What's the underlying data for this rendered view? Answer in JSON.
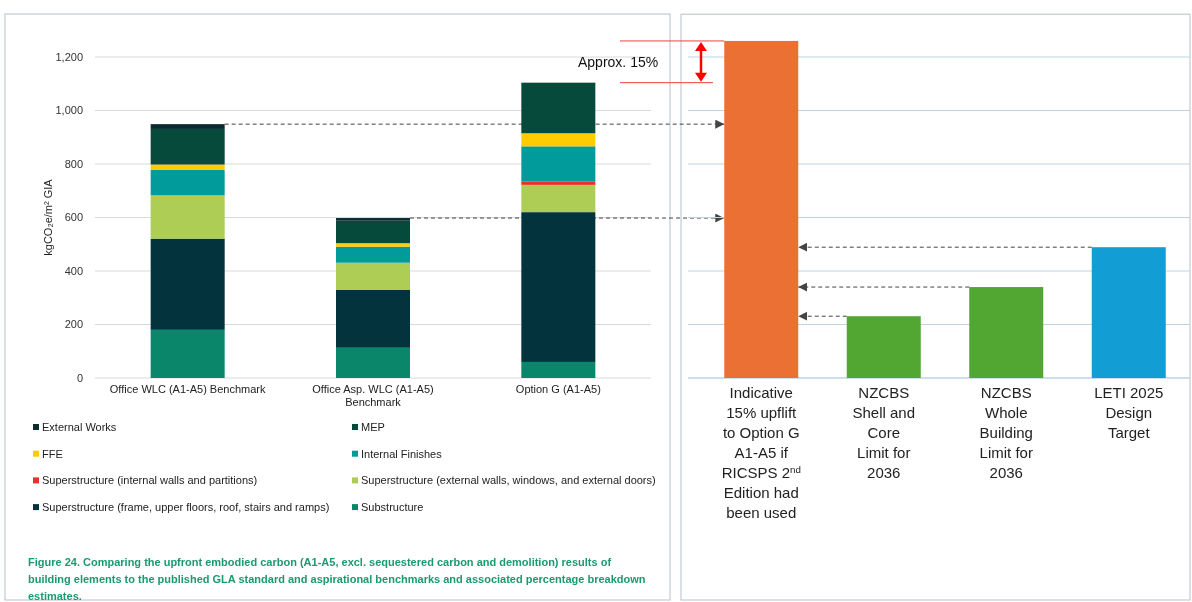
{
  "chart_data": [
    {
      "type": "bar",
      "stacked": true,
      "ylabel": "kgCO₂e/m² GIA",
      "categories": [
        "Office WLC (A1-A5) Benchmark",
        "Office Asp. WLC (A1-A5) Benchmark",
        "Option G (A1-A5)"
      ],
      "series": [
        {
          "name": "Substructure",
          "color": "#0a876a",
          "values": [
            180,
            113,
            60
          ]
        },
        {
          "name": "Superstructure (frame, upper floors, roof, stairs and ramps)",
          "color": "#03343e",
          "values": [
            341,
            216,
            560
          ]
        },
        {
          "name": "Superstructure (external walls, windows, and external doors)",
          "color": "#adcd55",
          "values": [
            162,
            102,
            102
          ]
        },
        {
          "name": "Superstructure (internal walls and partitions)",
          "color": "#e8312a",
          "values": [
            0,
            0,
            13
          ]
        },
        {
          "name": "Internal Finishes",
          "color": "#019b9b",
          "values": [
            96,
            60,
            131
          ]
        },
        {
          "name": "FFE",
          "color": "#ffcc00",
          "values": [
            19,
            13,
            49
          ]
        },
        {
          "name": "MEP",
          "color": "#064a3b",
          "values": [
            133,
            84,
            189
          ]
        },
        {
          "name": "External Works",
          "color": "#0c2a30",
          "values": [
            18,
            10,
            0
          ]
        }
      ],
      "ylim": [
        0,
        1200
      ],
      "yticks": [
        0,
        200,
        400,
        600,
        800,
        {
          "value": 1000,
          "label": "1,000"
        },
        {
          "value": 1200,
          "label": "1,200"
        }
      ],
      "grid": "y",
      "legend": "bottom",
      "ref_lines": [
        {
          "axis": "y",
          "value": 949,
          "color": "#444444",
          "line_style": "dashed"
        },
        {
          "axis": "y",
          "value": 598,
          "color": "#444444",
          "line_style": "dashed"
        }
      ],
      "annotations": [
        "Approx. 15%",
        "Figure 24. Comparing the upfront embodied carbon (A1-A5, excl. sequestered carbon and demolition) results of building elements to the published GLA standard and aspirational benchmarks and associated percentage breakdown estimates."
      ]
    },
    {
      "type": "bar",
      "categories": [
        "Indicative\n15% upflift\nto Option G\nA1-A5 if\nRICSPS 2$^{nd}$\nEdition had\nbeen used",
        "NZCBS\nShell and\nCore\nLimit for\n2036",
        "NZCBS\nWhole\nBuilding\nLimit for\n2036",
        "LETI 2025\nDesign\nTarget"
      ],
      "values": [
        1260,
        231,
        340,
        489
      ],
      "colors": [
        "#ea7133",
        "#52a733",
        "#52a733",
        "#129ed5"
      ],
      "ylim": [
        0,
        1360
      ],
      "yticks": [
        0,
        200,
        400,
        600,
        800,
        1000,
        1200
      ],
      "tick_labels": "x",
      "grid": "y",
      "ref_lines": [
        {
          "axis": "y",
          "value": 489,
          "color": "#444444",
          "line_style": "dashed"
        },
        {
          "axis": "y",
          "value": 340,
          "color": "#444444",
          "line_style": "dashed"
        },
        {
          "axis": "y",
          "value": 231,
          "color": "#444444",
          "line_style": "dashed"
        }
      ]
    }
  ]
}
